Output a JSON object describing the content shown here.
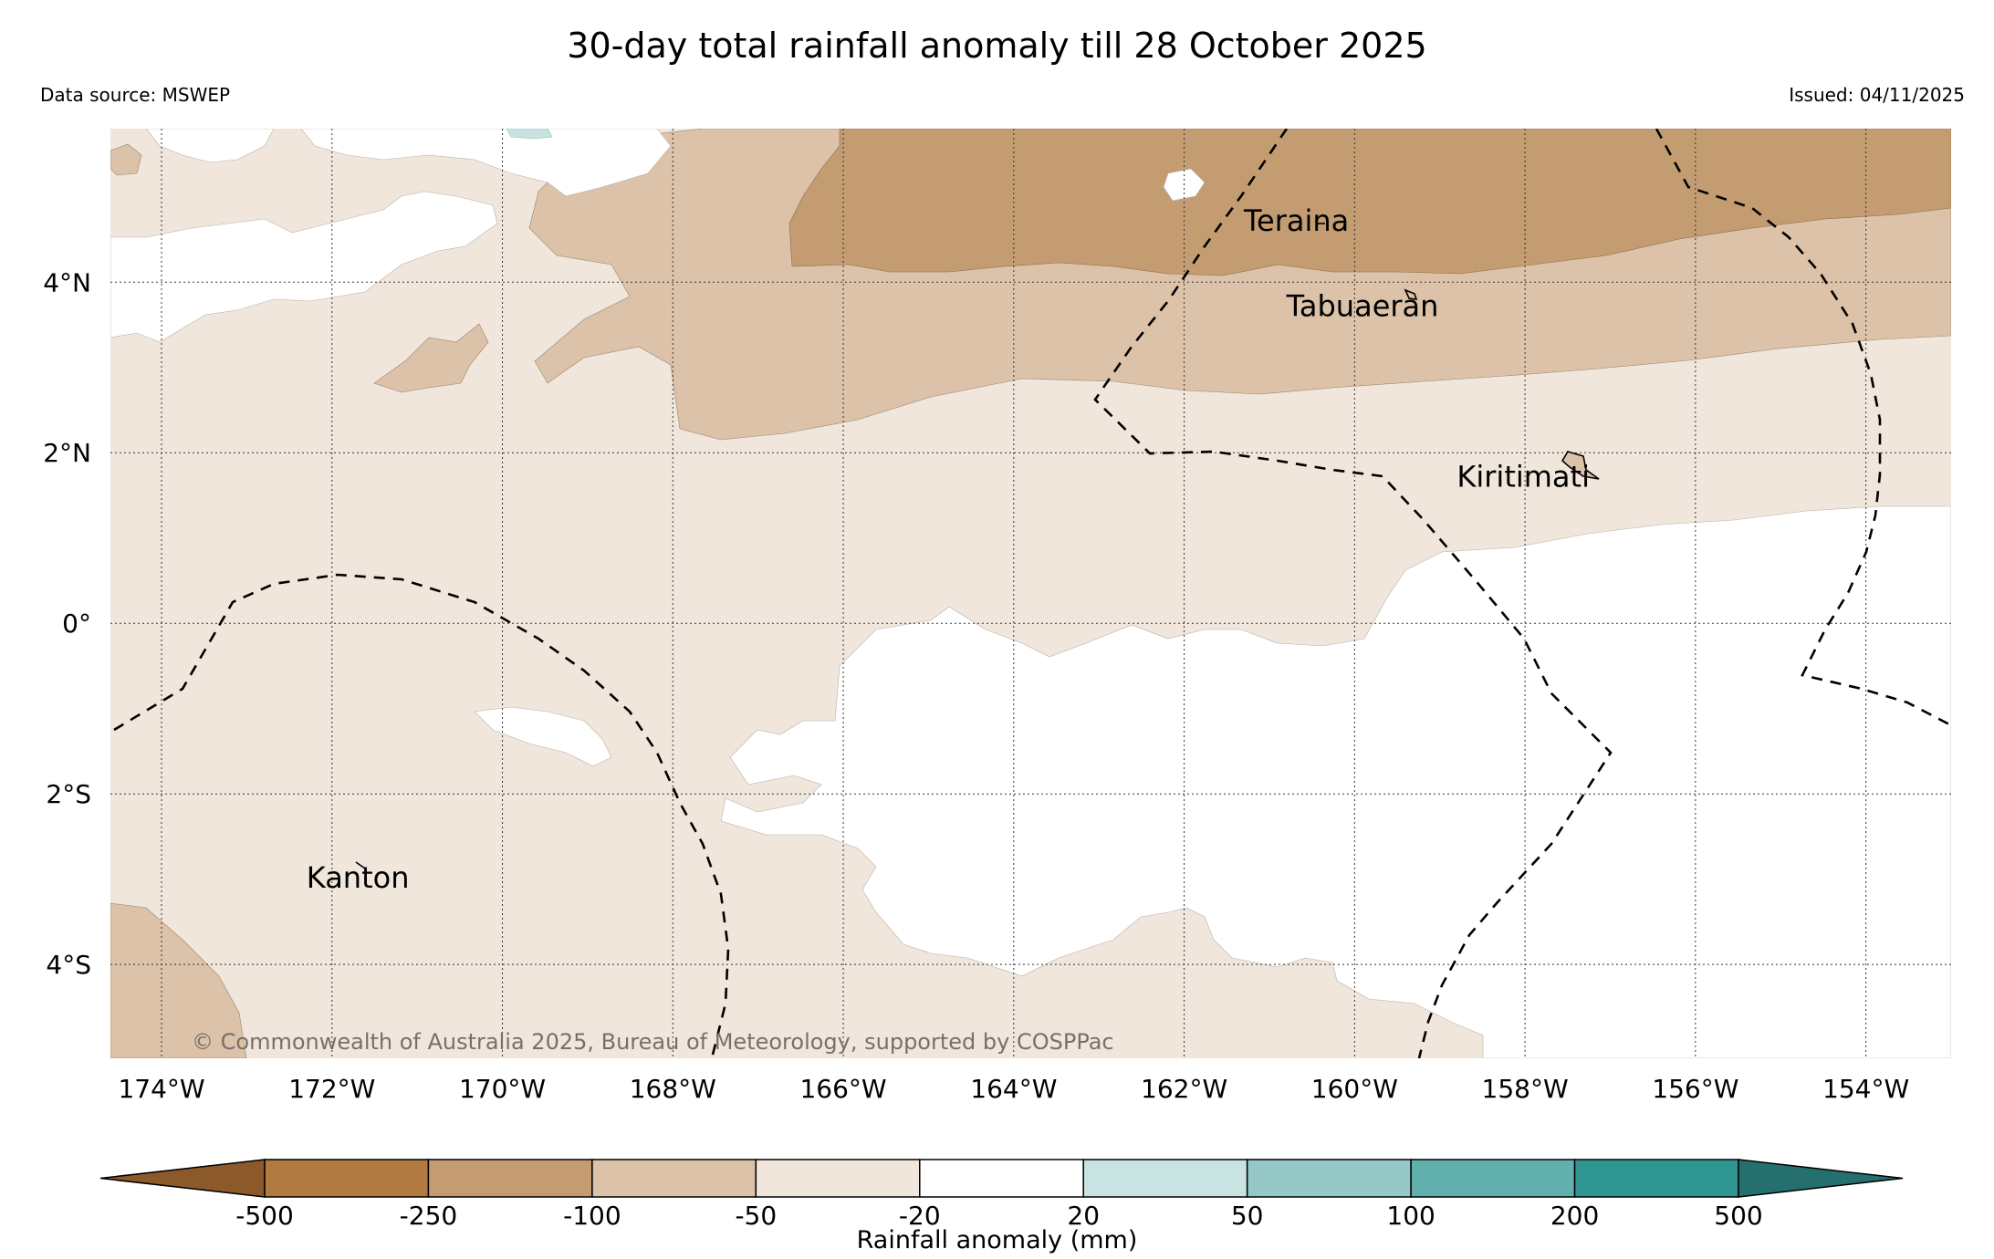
{
  "title": "30-day total rainfall anomaly till 28 October 2025",
  "data_source": "Data source: MSWEP",
  "issued": "Issued: 04/11/2025",
  "copyright": "© Commonwealth of Australia 2025, Bureau of Meteorology, supported by COSPPac",
  "map": {
    "extent": {
      "lon_min": -174.6,
      "lon_max": -153.0,
      "lat_min": -5.1,
      "lat_max": 5.8
    },
    "lon_ticks": [
      {
        "value": -174,
        "label": "174°W"
      },
      {
        "value": -172,
        "label": "172°W"
      },
      {
        "value": -170,
        "label": "170°W"
      },
      {
        "value": -168,
        "label": "168°W"
      },
      {
        "value": -166,
        "label": "166°W"
      },
      {
        "value": -164,
        "label": "164°W"
      },
      {
        "value": -162,
        "label": "162°W"
      },
      {
        "value": -160,
        "label": "160°W"
      },
      {
        "value": -158,
        "label": "158°W"
      },
      {
        "value": -156,
        "label": "156°W"
      },
      {
        "value": -154,
        "label": "154°W"
      }
    ],
    "lat_ticks": [
      {
        "value": 4,
        "label": "4°N"
      },
      {
        "value": 2,
        "label": "2°N"
      },
      {
        "value": 0,
        "label": "0°"
      },
      {
        "value": -2,
        "label": "2°S"
      },
      {
        "value": -4,
        "label": "4°S"
      }
    ],
    "places": [
      {
        "name": "Teraina",
        "lon": -161.3,
        "lat": 4.6
      },
      {
        "name": "Tabuaeran",
        "lon": -160.8,
        "lat": 3.6
      },
      {
        "name": "Kiritimati",
        "lon": -158.8,
        "lat": 1.6
      },
      {
        "name": "Kanton",
        "lon": -172.3,
        "lat": -3.1
      }
    ]
  },
  "colorbar": {
    "label": "Rainfall anomaly (mm)",
    "ticks": [
      "-500",
      "-250",
      "-100",
      "-50",
      "-20",
      "20",
      "50",
      "100",
      "200",
      "500"
    ],
    "colors": [
      "#8c5a2a",
      "#b07a40",
      "#c49c72",
      "#dbc2a9",
      "#f0e6dc",
      "#ffffff",
      "#c8e3e1",
      "#95c8c6",
      "#62b0ad",
      "#2e9591",
      "#25706e"
    ]
  }
}
